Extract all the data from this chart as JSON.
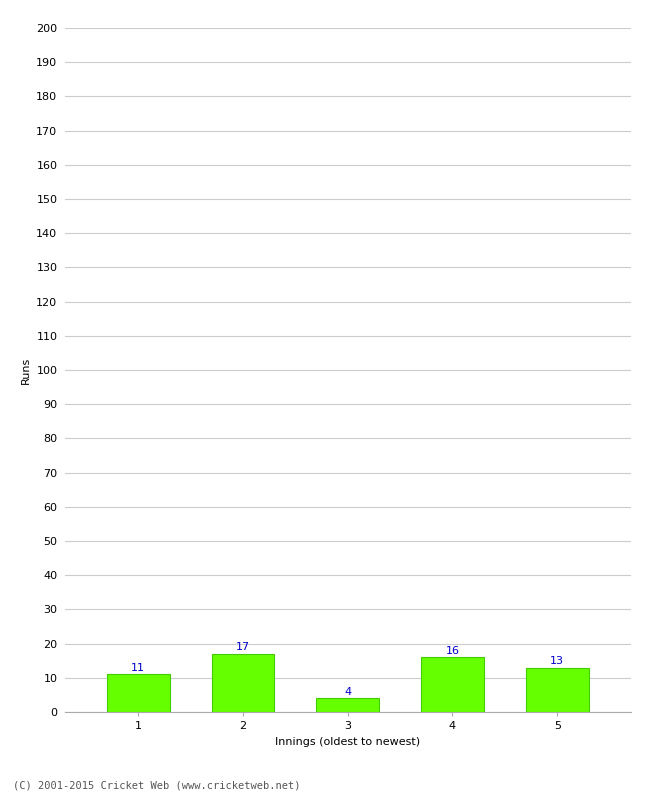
{
  "categories": [
    "1",
    "2",
    "3",
    "4",
    "5"
  ],
  "values": [
    11,
    17,
    4,
    16,
    13
  ],
  "bar_color": "#66ff00",
  "bar_edgecolor": "#44cc00",
  "value_color": "#0000cc",
  "xlabel": "Innings (oldest to newest)",
  "ylabel": "Runs",
  "ylim": [
    0,
    200
  ],
  "yticks": [
    0,
    10,
    20,
    30,
    40,
    50,
    60,
    70,
    80,
    90,
    100,
    110,
    120,
    130,
    140,
    150,
    160,
    170,
    180,
    190,
    200
  ],
  "grid_color": "#cccccc",
  "background_color": "#ffffff",
  "footer": "(C) 2001-2015 Cricket Web (www.cricketweb.net)",
  "value_fontsize": 8,
  "axis_fontsize": 8,
  "ylabel_fontsize": 8,
  "xlabel_fontsize": 8,
  "footer_fontsize": 7.5
}
